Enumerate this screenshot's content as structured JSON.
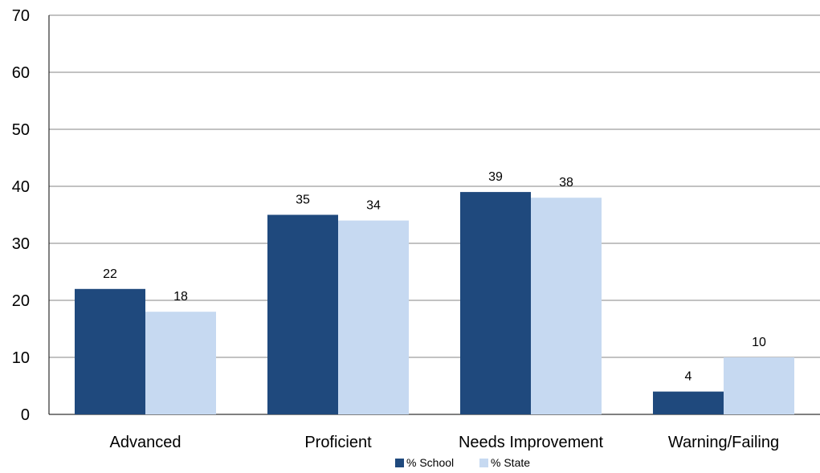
{
  "colors": {
    "school": "#1F497D",
    "state": "#C6D9F1",
    "grid": "#868686",
    "axis": "#000000"
  },
  "chart_data": {
    "type": "bar",
    "title": "",
    "xlabel": "",
    "ylabel": "",
    "categories": [
      "Advanced",
      "Proficient",
      "Needs Improvement",
      "Warning/Failing"
    ],
    "series": [
      {
        "name": "% School",
        "values": [
          22,
          35,
          39,
          4
        ],
        "color": "#1F497D"
      },
      {
        "name": "% State",
        "values": [
          18,
          34,
          38,
          10
        ],
        "color": "#C6D9F1"
      }
    ],
    "ylim": [
      0,
      70
    ],
    "yticks": [
      "0",
      "10",
      "20",
      "30",
      "40",
      "50",
      "60",
      "70"
    ],
    "grid": true,
    "legend_position": "bottom-center",
    "data_labels": true
  }
}
